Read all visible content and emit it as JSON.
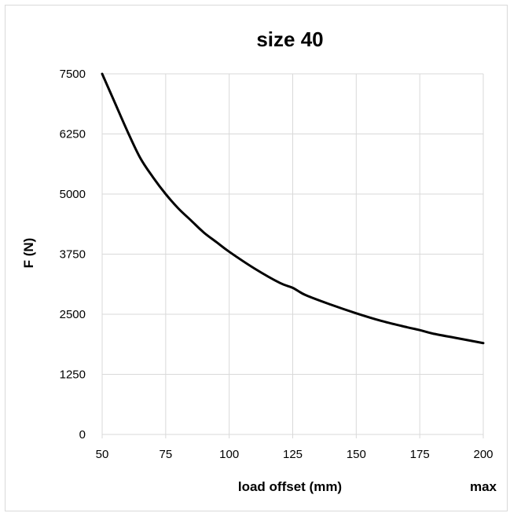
{
  "chart_data": {
    "type": "line",
    "title": "size 40",
    "xlabel": "load offset (mm)",
    "ylabel": "F (N)",
    "x_end_label": "max",
    "xlim": [
      50,
      200
    ],
    "ylim": [
      0,
      7500
    ],
    "x_ticks": [
      "50",
      "75",
      "100",
      "125",
      "150",
      "175",
      "200"
    ],
    "y_ticks": [
      "0",
      "1250",
      "2500",
      "3750",
      "5000",
      "6250",
      "7500"
    ],
    "grid": true,
    "legend": "none",
    "series": [
      {
        "color": "#000000",
        "x": [
          50,
          55,
          60,
          65,
          70,
          75,
          80,
          85,
          90,
          95,
          100,
          110,
          120,
          125,
          130,
          140,
          150,
          160,
          170,
          175,
          180,
          190,
          200
        ],
        "y": [
          7500,
          6900,
          6300,
          5750,
          5350,
          5000,
          4700,
          4450,
          4200,
          4000,
          3800,
          3450,
          3150,
          3050,
          2900,
          2700,
          2520,
          2360,
          2230,
          2170,
          2100,
          2000,
          1900
        ]
      }
    ]
  }
}
